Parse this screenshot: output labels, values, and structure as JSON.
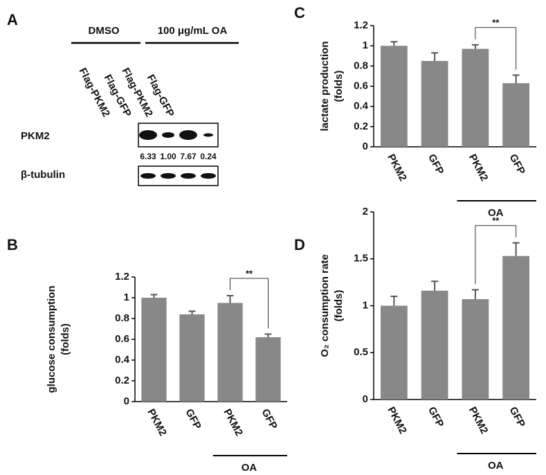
{
  "blot": {
    "panel_label": "A",
    "groups": [
      "DMSO",
      "100 μg/mL OA"
    ],
    "lanes": [
      "Flag-PKM2",
      "Flag-GFP",
      "Flag-PKM2",
      "Flag-GFP"
    ],
    "rows": [
      {
        "label": "PKM2",
        "quantification": [
          "6.33",
          "1.00",
          "7.67",
          "0.24"
        ]
      },
      {
        "label": "β-tubulin"
      }
    ]
  },
  "chart_data": [
    {
      "type": "bar",
      "panel_label": "C",
      "ylabel": [
        "lactate production",
        "(folds)"
      ],
      "categories": [
        "PKM2",
        "GFP",
        "PKM2",
        "GFP"
      ],
      "values": [
        1.0,
        0.85,
        0.97,
        0.63
      ],
      "errors": [
        0.04,
        0.08,
        0.04,
        0.08
      ],
      "color": "#888888",
      "ylim": [
        0,
        1.2
      ],
      "yticks": [
        0,
        0.2,
        0.4,
        0.6,
        0.8,
        1,
        1.2
      ],
      "group_label": "OA",
      "significance_label": "**"
    },
    {
      "type": "bar",
      "panel_label": "B",
      "ylabel": [
        "glucose consumption",
        "(folds)"
      ],
      "categories": [
        "PKM2",
        "GFP",
        "PKM2",
        "GFP"
      ],
      "values": [
        1.0,
        0.84,
        0.95,
        0.62
      ],
      "errors": [
        0.03,
        0.03,
        0.07,
        0.03
      ],
      "color": "#888888",
      "ylim": [
        0,
        1.2
      ],
      "yticks": [
        0,
        0.2,
        0.4,
        0.6,
        0.8,
        1,
        1.2
      ],
      "group_label": "OA",
      "significance_label": "**"
    },
    {
      "type": "bar",
      "panel_label": "D",
      "ylabel": [
        "O₂ consumption rate",
        "(folds)"
      ],
      "categories": [
        "PKM2",
        "GFP",
        "PKM2",
        "GFP"
      ],
      "values": [
        1.0,
        1.16,
        1.07,
        1.53
      ],
      "errors": [
        0.1,
        0.1,
        0.1,
        0.14
      ],
      "color": "#888888",
      "ylim": [
        0,
        2
      ],
      "yticks": [
        0,
        0.5,
        1,
        1.5,
        2
      ],
      "group_label": "OA",
      "significance_label": "**"
    }
  ]
}
